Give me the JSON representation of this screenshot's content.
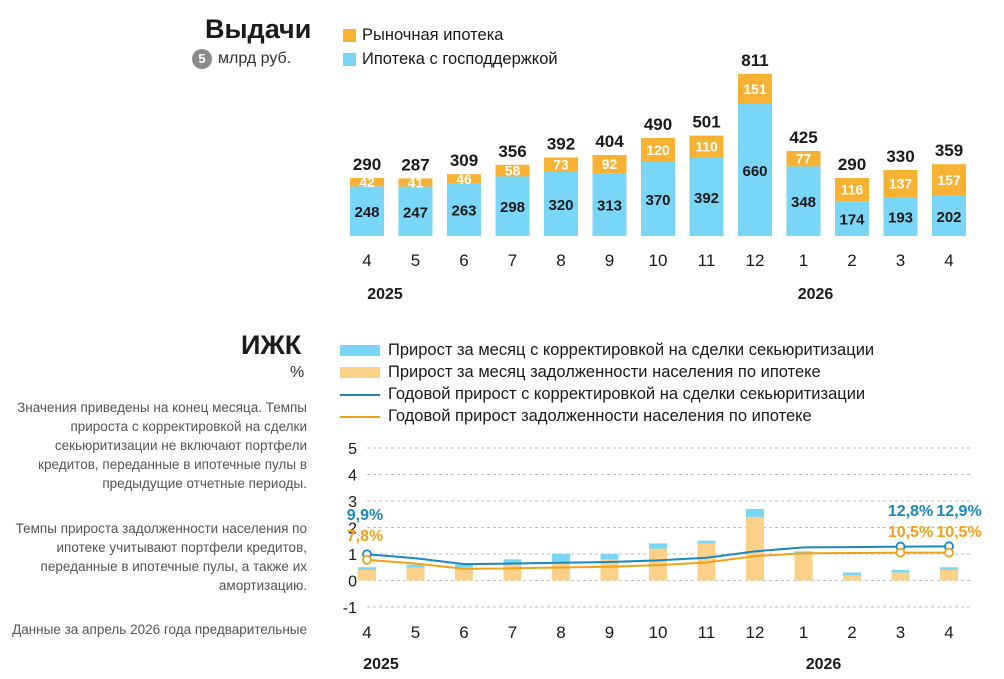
{
  "colors": {
    "market": "#f7b233",
    "state": "#7ad6f7",
    "bar_pale_orange": "#fbd18a",
    "line_blue": "#1a88c0",
    "line_orange": "#f0a21a",
    "badge_gray": "#8a8a8a"
  },
  "issuance": {
    "title": "Выдачи",
    "badge": "5",
    "unit": "млрд руб.",
    "legend_market": "Рыночная ипотека",
    "legend_state": "Ипотека с господдержкой"
  },
  "izhk": {
    "title": "ИЖК",
    "unit": "%",
    "legend": [
      "Прирост за месяц с корректировкой на сделки секьюритизации",
      "Прирост за месяц задолженности населения по ипотеке",
      "Годовой прирост с корректировкой на сделки секьюритизации",
      "Годовой прирост задолженности населения по ипотеке"
    ],
    "notes": [
      "Значения приведены на конец месяца. Темпы прироста с корректировкой на сделки секьюритизации не включают портфели кредитов, переданные в ипотечные пулы в предыдущие отчетные периоды.",
      "Темпы прироста задолженности населения по ипотеке учитывают портфели кредитов, переданные в ипотечные пулы, а также их амортизацию.",
      "Данные за апрель 2026 года предварительные"
    ]
  },
  "chart_data": [
    {
      "type": "bar",
      "stacked": true,
      "title": "Выдачи",
      "unit": "млрд руб.",
      "categories": [
        "4",
        "5",
        "6",
        "7",
        "8",
        "9",
        "10",
        "11",
        "12",
        "1",
        "2",
        "3",
        "4"
      ],
      "year_labels": [
        "2025",
        "2026"
      ],
      "series": [
        {
          "name": "Ипотека с господдержкой",
          "values": [
            248,
            247,
            263,
            298,
            320,
            313,
            370,
            392,
            660,
            348,
            174,
            193,
            202
          ]
        },
        {
          "name": "Рыночная ипотека",
          "values": [
            42,
            41,
            46,
            58,
            73,
            92,
            120,
            110,
            151,
            77,
            116,
            137,
            157
          ]
        }
      ],
      "totals": [
        290,
        287,
        309,
        356,
        392,
        404,
        490,
        501,
        811,
        425,
        290,
        330,
        359
      ]
    },
    {
      "type": "bar+line",
      "title": "ИЖК",
      "unit": "%",
      "categories": [
        "4",
        "5",
        "6",
        "7",
        "8",
        "9",
        "10",
        "11",
        "12",
        "1",
        "2",
        "3",
        "4"
      ],
      "year_labels": [
        "2025",
        "2026"
      ],
      "y_ticks": [
        "5",
        "4",
        "3",
        "2",
        "1",
        "0",
        "-1"
      ],
      "ylim": [
        -1,
        5
      ],
      "grid": true,
      "series": [
        {
          "name": "Прирост за месяц с корректировкой на сделки секьюритизации",
          "type": "bar",
          "values": [
            0.5,
            0.6,
            0.6,
            0.8,
            1.0,
            1.0,
            1.4,
            1.5,
            2.7,
            1.1,
            0.3,
            0.4,
            0.5
          ]
        },
        {
          "name": "Прирост за месяц задолженности населения по ипотеке",
          "type": "bar",
          "values": [
            0.4,
            0.5,
            0.5,
            0.6,
            0.7,
            0.8,
            1.2,
            1.4,
            2.4,
            1.0,
            0.2,
            0.3,
            0.4
          ]
        },
        {
          "name": "Годовой прирост с корректировкой на сделки секьюритизации",
          "type": "line",
          "values": [
            0.99,
            0.84,
            0.62,
            0.64,
            0.67,
            0.7,
            0.76,
            0.86,
            1.1,
            1.25,
            1.26,
            1.28,
            1.29
          ]
        },
        {
          "name": "Годовой прирост задолженности населения по ипотеке",
          "type": "line",
          "values": [
            0.78,
            0.64,
            0.44,
            0.46,
            0.49,
            0.52,
            0.58,
            0.68,
            0.92,
            1.03,
            1.04,
            1.05,
            1.05
          ]
        }
      ],
      "annotations": [
        {
          "series": "Годовой прирост с корректировкой на сделки секьюритизации",
          "labels": [
            "9,9%",
            "12,8%",
            "12,9%"
          ]
        },
        {
          "series": "Годовой прирост задолженности населения по ипотеке",
          "labels": [
            "7,8%",
            "10,5%",
            "10,5%"
          ]
        }
      ]
    }
  ]
}
